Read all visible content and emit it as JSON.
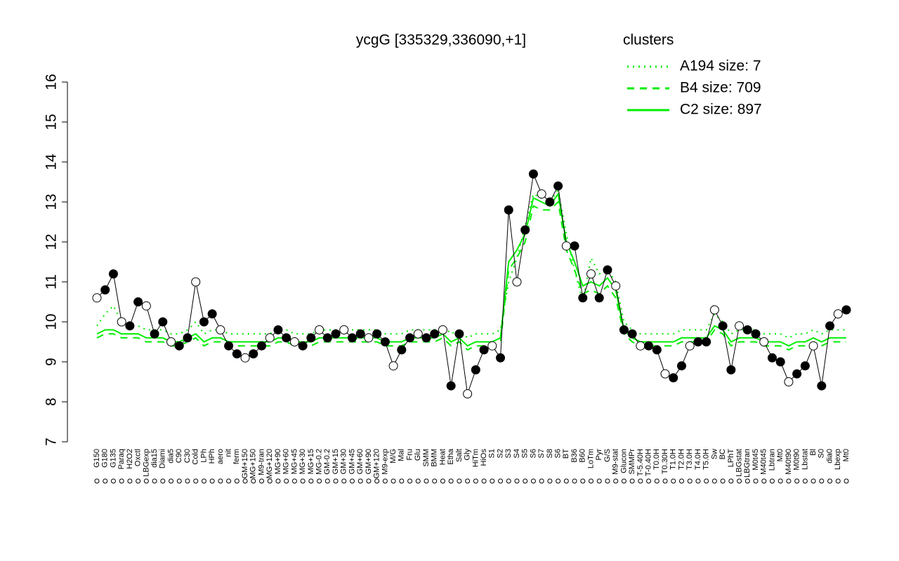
{
  "chart_data": {
    "type": "line",
    "title": "ycgG [335329,336090,+1]",
    "legend_title": "clusters",
    "legend": "top-right",
    "point_color": "#000000",
    "categories": [
      "G150",
      "G180",
      "G135",
      "Paraq",
      "H2O2",
      "Oxctl",
      "LBGexp",
      "dia15",
      "Diami",
      "dia5",
      "C90",
      "C30",
      "Cold",
      "LPh",
      "HPh",
      "aero",
      "nit",
      "ferm",
      "GM+150",
      "MG+150",
      "M9-tran",
      "MG+120",
      "MG+90",
      "MG+60",
      "MG+45",
      "MG+30",
      "MG+15",
      "MG-0.2",
      "GM-0.2",
      "GM+15",
      "GM+30",
      "GM+45",
      "GM+60",
      "GM+90",
      "GM+120",
      "M9-exp",
      "M/G",
      "Mal",
      "Fru",
      "Glu",
      "SMM",
      "BMM",
      "Heat",
      "Etha",
      "Salt",
      "Gly",
      "HiTm",
      "HiOs",
      "S1",
      "S2",
      "S3",
      "S4",
      "S5",
      "S6",
      "S7",
      "S8",
      "S6",
      "BT",
      "B36",
      "B60",
      "LoTm",
      "Pyr",
      "G/S",
      "M9-stat",
      "Glucon",
      "SMMPr",
      "T-5.40H",
      "T-0.40H",
      "T0.0H",
      "T0.30H",
      "T1.0H",
      "T2.0H",
      "T3.0H",
      "T4.0H",
      "T5.0H",
      "Sw",
      "BC",
      "LPhT",
      "LBGstat",
      "LBGtran",
      "M0t45",
      "M40t45",
      "Lbtran",
      "Mt0",
      "M40t90",
      "M0t90",
      "Lbstat",
      "Bl",
      "S0",
      "dia0",
      "Lbexp",
      "Mt0"
    ],
    "values": [
      10.6,
      10.8,
      11.2,
      10.0,
      9.9,
      10.5,
      10.4,
      9.7,
      10.0,
      9.5,
      9.4,
      9.6,
      11.0,
      10.0,
      10.2,
      9.8,
      9.4,
      9.2,
      9.1,
      9.2,
      9.4,
      9.6,
      9.8,
      9.6,
      9.5,
      9.4,
      9.6,
      9.8,
      9.6,
      9.7,
      9.8,
      9.6,
      9.7,
      9.6,
      9.7,
      9.5,
      8.9,
      9.3,
      9.6,
      9.7,
      9.6,
      9.7,
      9.8,
      8.4,
      9.7,
      8.2,
      8.8,
      9.3,
      9.4,
      9.1,
      12.8,
      11.0,
      12.3,
      13.7,
      13.2,
      13.0,
      13.4,
      11.9,
      11.9,
      10.6,
      11.2,
      10.6,
      11.3,
      10.9,
      9.8,
      9.7,
      9.4,
      9.4,
      9.3,
      8.7,
      8.6,
      8.9,
      9.4,
      9.5,
      9.5,
      10.3,
      9.9,
      8.8,
      9.9,
      9.8,
      9.7,
      9.5,
      9.1,
      9.0,
      8.5,
      8.7,
      8.9,
      9.4,
      8.4,
      9.9,
      10.2,
      10.3
    ],
    "series": [
      {
        "name": "A194 size: 7",
        "color": "#00ee00",
        "dash": "dotted",
        "values": [
          9.9,
          10.2,
          10.4,
          10.0,
          9.9,
          9.9,
          9.8,
          9.8,
          9.8,
          9.7,
          9.7,
          9.8,
          10.0,
          9.7,
          9.8,
          9.8,
          9.7,
          9.7,
          9.7,
          9.7,
          9.7,
          9.7,
          9.8,
          9.8,
          9.7,
          9.7,
          9.7,
          9.8,
          9.8,
          9.8,
          9.8,
          9.8,
          9.8,
          9.8,
          9.8,
          9.7,
          9.7,
          9.7,
          9.8,
          9.8,
          9.8,
          9.8,
          9.9,
          9.7,
          9.8,
          9.6,
          9.7,
          9.7,
          9.7,
          9.8,
          11.0,
          11.6,
          12.4,
          13.2,
          13.1,
          13.0,
          13.3,
          12.2,
          11.3,
          10.5,
          11.6,
          11.2,
          11.3,
          11.0,
          10.0,
          9.8,
          9.7,
          9.7,
          9.7,
          9.7,
          9.7,
          9.8,
          9.8,
          9.8,
          9.8,
          10.2,
          10.0,
          9.7,
          9.8,
          9.8,
          9.8,
          9.7,
          9.7,
          9.7,
          9.6,
          9.7,
          9.7,
          9.8,
          9.7,
          9.8,
          9.8,
          9.8
        ]
      },
      {
        "name": "B4 size: 709",
        "color": "#00ee00",
        "dash": "dashed",
        "values": [
          9.6,
          9.7,
          9.7,
          9.6,
          9.6,
          9.6,
          9.5,
          9.5,
          9.5,
          9.4,
          9.4,
          9.5,
          9.6,
          9.4,
          9.5,
          9.5,
          9.4,
          9.4,
          9.4,
          9.4,
          9.4,
          9.4,
          9.5,
          9.5,
          9.4,
          9.4,
          9.4,
          9.5,
          9.5,
          9.5,
          9.5,
          9.5,
          9.5,
          9.5,
          9.5,
          9.4,
          9.4,
          9.4,
          9.5,
          9.5,
          9.5,
          9.5,
          9.6,
          9.4,
          9.5,
          9.3,
          9.4,
          9.4,
          9.4,
          9.5,
          11.3,
          11.6,
          12.0,
          12.9,
          12.8,
          12.8,
          13.0,
          11.8,
          11.3,
          10.7,
          10.8,
          10.7,
          10.9,
          10.6,
          9.7,
          9.5,
          9.4,
          9.4,
          9.4,
          9.4,
          9.4,
          9.5,
          9.5,
          9.5,
          9.5,
          9.8,
          9.7,
          9.4,
          9.5,
          9.5,
          9.5,
          9.4,
          9.4,
          9.4,
          9.3,
          9.4,
          9.4,
          9.5,
          9.4,
          9.5,
          9.5,
          9.5
        ]
      },
      {
        "name": "C2 size: 897",
        "color": "#00ee00",
        "dash": "solid",
        "values": [
          9.7,
          9.8,
          9.8,
          9.7,
          9.7,
          9.7,
          9.6,
          9.6,
          9.6,
          9.5,
          9.5,
          9.6,
          9.7,
          9.5,
          9.6,
          9.6,
          9.5,
          9.5,
          9.5,
          9.5,
          9.5,
          9.5,
          9.6,
          9.6,
          9.5,
          9.5,
          9.5,
          9.6,
          9.6,
          9.6,
          9.6,
          9.6,
          9.6,
          9.6,
          9.6,
          9.5,
          9.5,
          9.5,
          9.6,
          9.6,
          9.6,
          9.6,
          9.7,
          9.5,
          9.6,
          9.4,
          9.5,
          9.5,
          9.5,
          9.6,
          11.5,
          11.8,
          12.2,
          13.1,
          13.0,
          12.9,
          13.2,
          12.0,
          11.5,
          10.9,
          11.0,
          10.9,
          11.1,
          10.8,
          9.8,
          9.6,
          9.5,
          9.5,
          9.5,
          9.5,
          9.5,
          9.6,
          9.6,
          9.6,
          9.6,
          9.9,
          9.8,
          9.5,
          9.6,
          9.6,
          9.6,
          9.5,
          9.5,
          9.5,
          9.4,
          9.5,
          9.5,
          9.6,
          9.5,
          9.6,
          9.6,
          9.6
        ]
      }
    ],
    "ylim": [
      7,
      16
    ],
    "yticks": [
      7,
      8,
      9,
      10,
      11,
      12,
      13,
      14,
      15,
      16
    ]
  }
}
